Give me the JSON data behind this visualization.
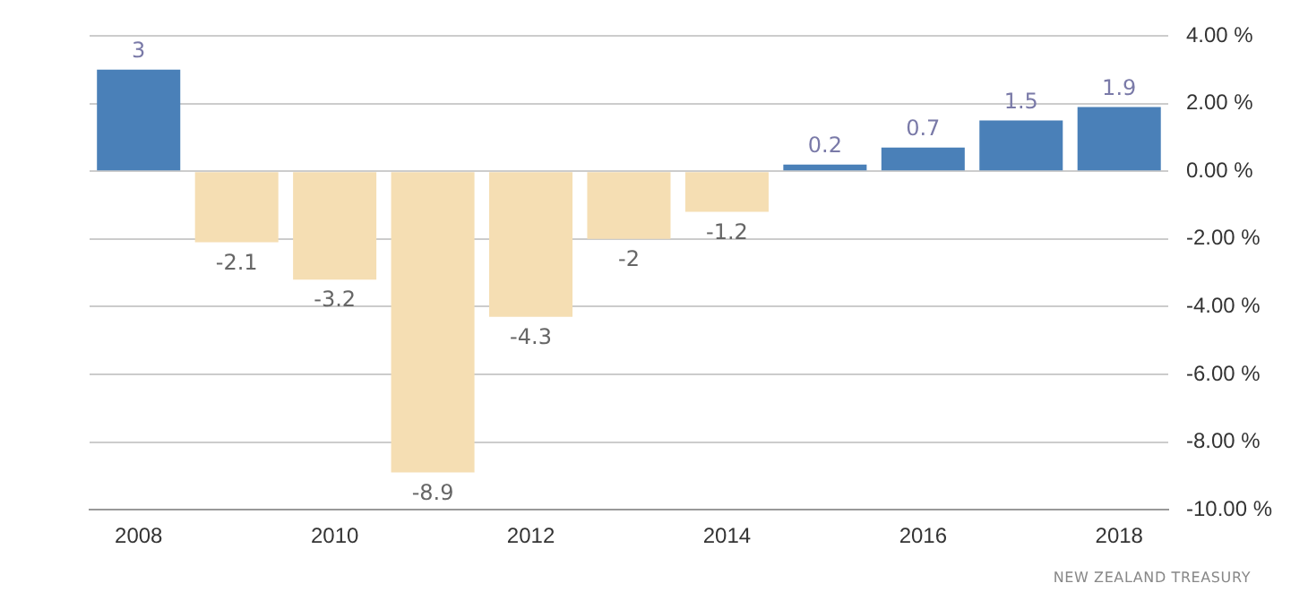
{
  "chart_data": {
    "type": "bar",
    "categories": [
      "2008",
      null,
      "2010",
      null,
      "2012",
      null,
      "2014",
      null,
      "2016",
      null,
      "2018"
    ],
    "values": [
      3,
      -2.1,
      -3.2,
      -8.9,
      -4.3,
      -2,
      -1.2,
      0.2,
      0.7,
      1.5,
      1.9
    ],
    "colors": [
      "#4a80b8",
      "#f5deb3",
      "#f5deb3",
      "#f5deb3",
      "#f5deb3",
      "#f5deb3",
      "#f5deb3",
      "#4a80b8",
      "#4a80b8",
      "#4a80b8",
      "#4a80b8"
    ],
    "ylim": [
      -10,
      4
    ],
    "yticks": [
      {
        "value": 4,
        "label": "4.00 %"
      },
      {
        "value": 2,
        "label": "2.00 %"
      },
      {
        "value": 0,
        "label": "0.00 %"
      },
      {
        "value": -2,
        "label": "-2.00 %"
      },
      {
        "value": -4,
        "label": "-4.00 %"
      },
      {
        "value": -6,
        "label": "-6.00 %"
      },
      {
        "value": -8,
        "label": "-8.00 %"
      },
      {
        "value": -10,
        "label": "-10.00 %"
      }
    ],
    "grid": "y",
    "data_labels": true,
    "legend": false,
    "annotations": [
      "NEW ZEALAND TREASURY"
    ]
  }
}
